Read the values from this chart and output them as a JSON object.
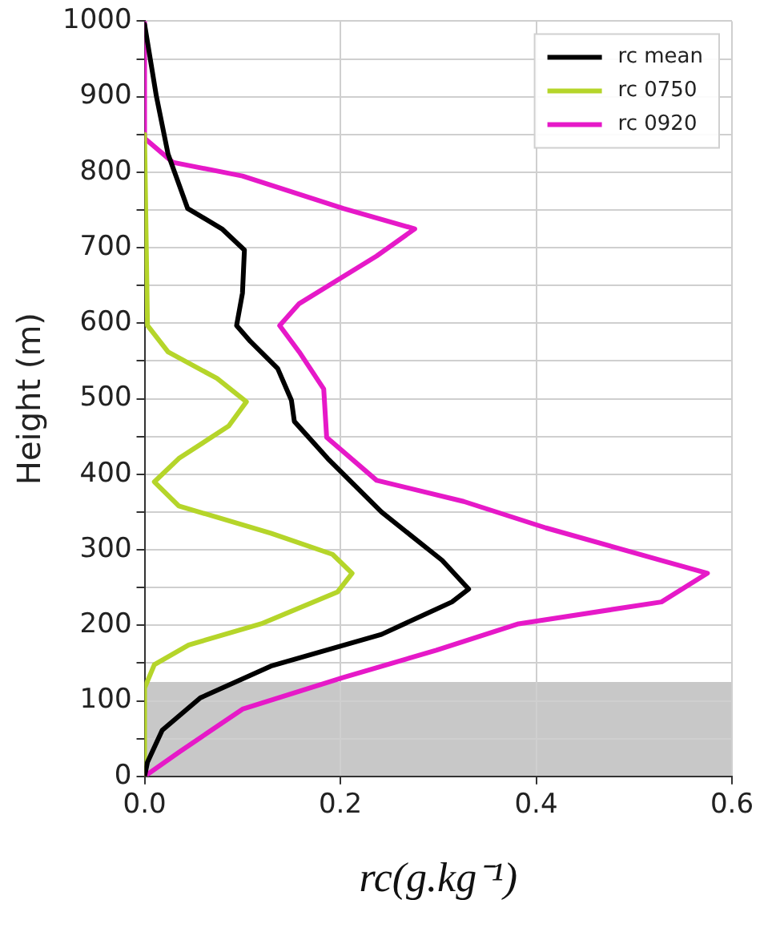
{
  "chart_data": {
    "type": "line",
    "xlabel": "rc(g.kg⁻¹)",
    "ylabel": "Height (m)",
    "xlim": [
      0,
      0.6
    ],
    "ylim": [
      0,
      1000
    ],
    "xticks": [
      {
        "value": 0,
        "label": "0.0"
      },
      0.2,
      0.4,
      0.6
    ],
    "yticks": [
      0,
      {
        "value": 50,
        "label": null
      },
      100,
      {
        "value": 150,
        "label": null
      },
      200,
      {
        "value": 250,
        "label": null
      },
      300,
      {
        "value": 350,
        "label": null
      },
      400,
      {
        "value": 450,
        "label": null
      },
      500,
      {
        "value": 550,
        "label": null
      },
      600,
      {
        "value": 650,
        "label": null
      },
      700,
      {
        "value": 750,
        "label": null
      },
      800,
      {
        "value": 850,
        "label": null
      },
      900,
      {
        "value": 950,
        "label": null
      },
      1000
    ],
    "grid": true,
    "legend": "top right",
    "marker": "none",
    "line_style": "solid",
    "bands": [
      {
        "axis": "y",
        "from": 0,
        "to": 125,
        "color": "#c8c8c8"
      }
    ],
    "series": [
      {
        "name": "rc mean",
        "color": "#000000",
        "x": [
          0,
          0.012,
          0.024,
          0.044,
          0.079,
          0.102,
          0.1,
          0.094,
          0.108,
          0.136,
          0.15,
          0.153,
          0.187,
          0.242,
          0.304,
          0.331,
          0.314,
          0.242,
          0.129,
          0.057,
          0.018,
          0.003,
          0
        ],
        "values": [
          996,
          901,
          824,
          752,
          725,
          697,
          640,
          597,
          576,
          540,
          498,
          470,
          421,
          350,
          286,
          248,
          231,
          188,
          146,
          104,
          61,
          19,
          0
        ]
      },
      {
        "name": "rc 0750",
        "color": "#b5d52a",
        "x": [
          0,
          0.003,
          0.024,
          0.074,
          0.104,
          0.086,
          0.035,
          0.01,
          0.035,
          0.129,
          0.192,
          0.212,
          0.197,
          0.119,
          0.045,
          0.01,
          0,
          0
        ],
        "values": [
          850,
          597,
          562,
          527,
          496,
          464,
          421,
          390,
          358,
          322,
          294,
          269,
          244,
          202,
          174,
          148,
          117,
          0
        ]
      },
      {
        "name": "rc 0920",
        "color": "#e619c8",
        "x": [
          0,
          0,
          0.029,
          0.1,
          0.203,
          0.276,
          0.237,
          0.158,
          0.138,
          0.158,
          0.183,
          0.186,
          0.237,
          0.326,
          0.41,
          0.528,
          0.575,
          0.528,
          0.382,
          0.298,
          0.203,
          0.1,
          0.035,
          0
        ],
        "values": [
          1000,
          845,
          813,
          795,
          752,
          725,
          689,
          626,
          597,
          562,
          513,
          449,
          392,
          364,
          329,
          286,
          269,
          231,
          202,
          167,
          131,
          89,
          32,
          0
        ]
      }
    ]
  }
}
